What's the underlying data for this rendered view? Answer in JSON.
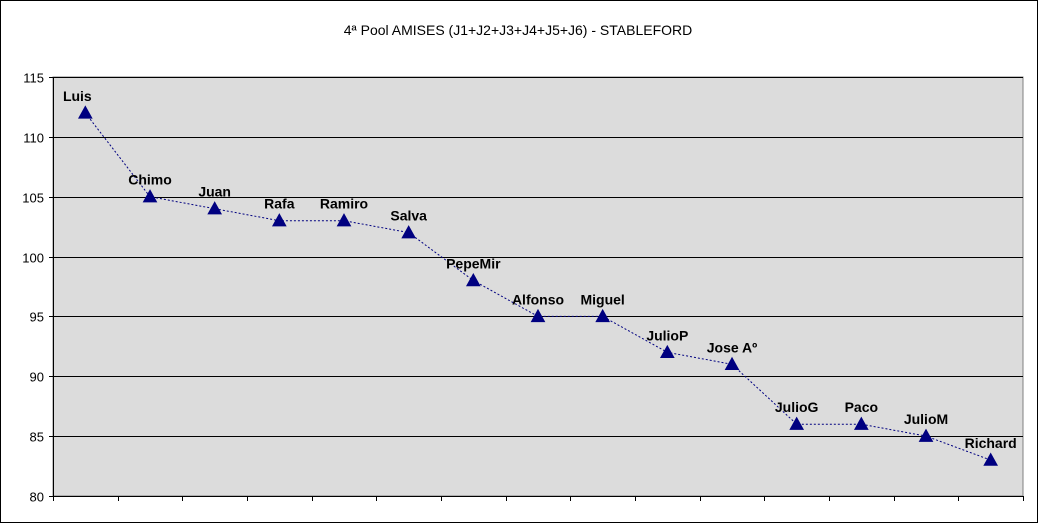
{
  "chart_data": {
    "type": "line",
    "title": "4ª Pool AMISES (J1+J2+J3+J4+J5+J6) - STABLEFORD",
    "xlabel": "",
    "ylabel": "",
    "ylim": [
      80,
      115
    ],
    "yticks": [
      80,
      85,
      90,
      95,
      100,
      105,
      110,
      115
    ],
    "grid": "horizontal",
    "legend": "none",
    "categories": [
      "Luis",
      "Chimo",
      "Juan",
      "Rafa",
      "Ramiro",
      "Salva",
      "PepeMir",
      "Alfonso",
      "Miguel",
      "JulioP",
      "Jose Aº",
      "JulioG",
      "Paco",
      "JulioM",
      "Richard"
    ],
    "series": [
      {
        "values": [
          112,
          105,
          104,
          103,
          103,
          102,
          98,
          95,
          95,
          92,
          91,
          86,
          86,
          85,
          83
        ],
        "color": "#000080",
        "marker": "triangle",
        "line_style": "dotted"
      }
    ],
    "plot_background": "#dcdcdc",
    "gridline_color": "#000000"
  }
}
